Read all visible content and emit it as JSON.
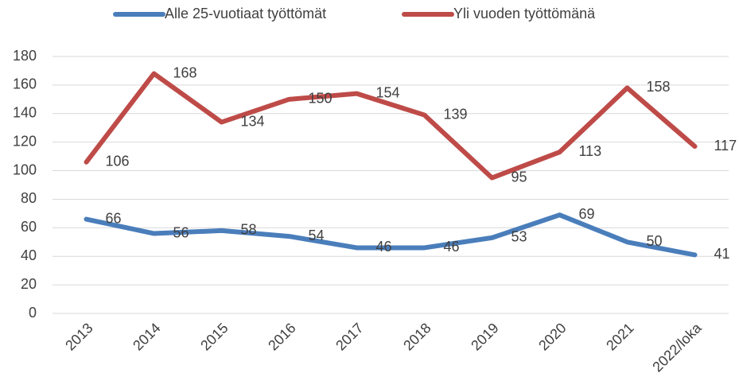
{
  "chart_data": {
    "type": "line",
    "categories": [
      "2013",
      "2014",
      "2015",
      "2016",
      "2017",
      "2018",
      "2019",
      "2020",
      "2021",
      "2022/loka"
    ],
    "series": [
      {
        "name": "Alle 25-vuotiaat työttömät",
        "color": "#4a7ebb",
        "values": [
          66,
          56,
          58,
          54,
          46,
          46,
          53,
          69,
          50,
          41
        ]
      },
      {
        "name": "Yli vuoden työttömänä",
        "color": "#be4b48",
        "values": [
          106,
          168,
          134,
          150,
          154,
          139,
          95,
          113,
          158,
          117
        ]
      }
    ],
    "ylim": [
      0,
      180
    ],
    "yticks": [
      0,
      20,
      40,
      60,
      80,
      100,
      120,
      140,
      160,
      180
    ],
    "grid": true,
    "legend": "top"
  }
}
